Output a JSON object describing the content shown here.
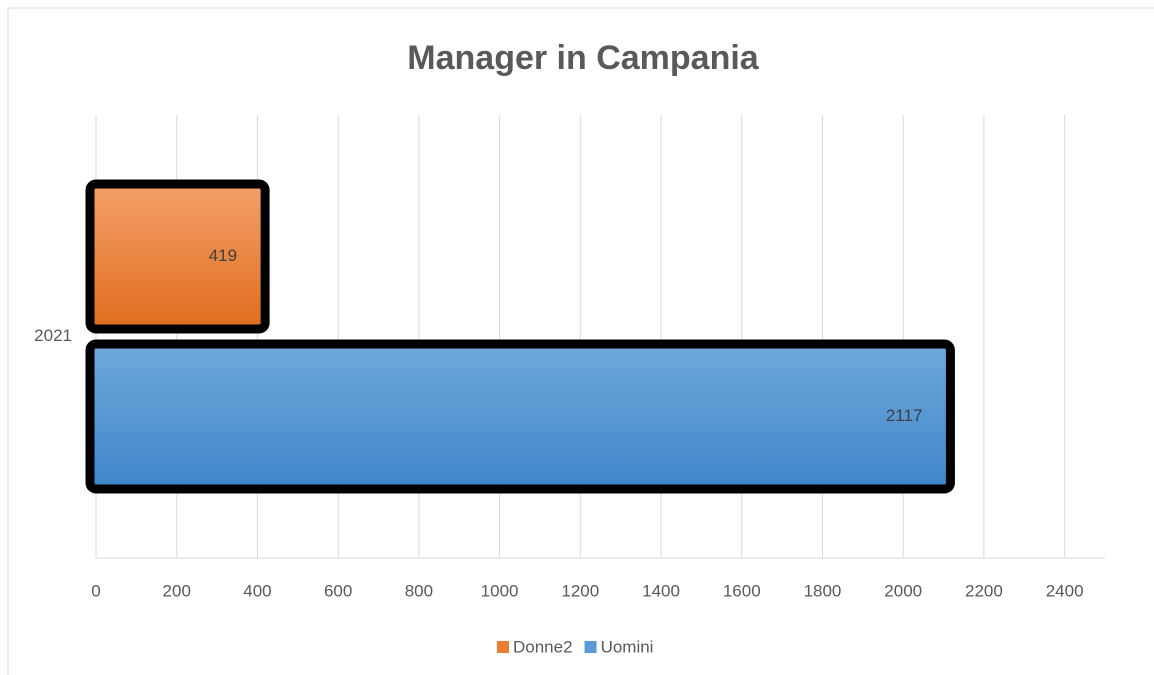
{
  "chart_data": {
    "type": "hbar",
    "title": "Manager in Campania",
    "categories": [
      "2021"
    ],
    "series": [
      {
        "name": "Donne2",
        "color": "#ed7d31",
        "values": [
          419
        ]
      },
      {
        "name": "Uomini",
        "color": "#5b9bd5",
        "values": [
          2117
        ]
      }
    ],
    "xlim": [
      0,
      2500
    ],
    "xticks": [
      0,
      200,
      400,
      600,
      800,
      1000,
      1200,
      1400,
      1600,
      1800,
      2000,
      2200,
      2400
    ],
    "grid": true,
    "legend": "bottom"
  }
}
